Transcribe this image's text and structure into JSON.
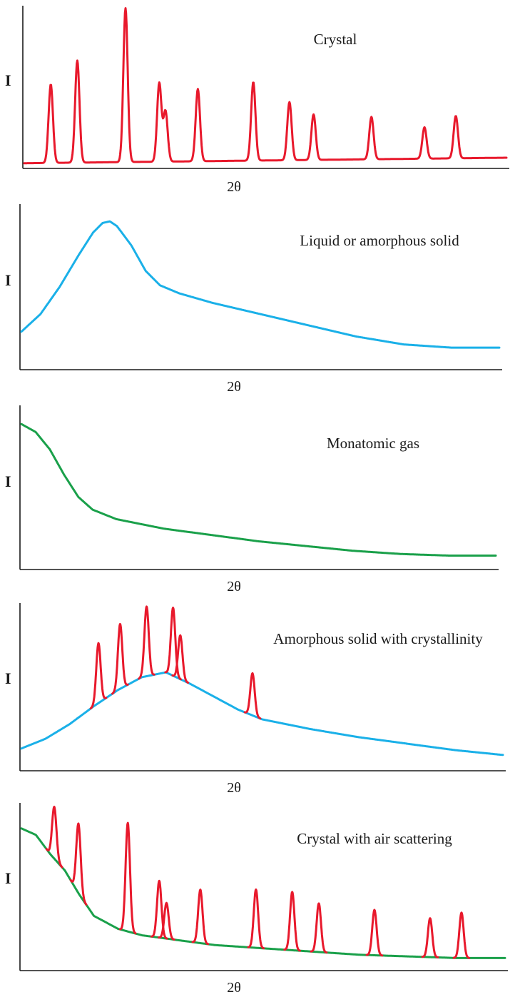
{
  "colors": {
    "crystal": "#e8192c",
    "liquid": "#1ab0e8",
    "gas": "#1aa04a",
    "axis": "#1a1a1a"
  },
  "chart_data": [
    {
      "type": "line",
      "title": "Crystal",
      "xlabel": "2θ",
      "ylabel": "I",
      "grid": false,
      "xlim": [
        0,
        100
      ],
      "ylim": [
        0,
        100
      ],
      "series": [
        {
          "color": "#e8192c",
          "background": [
            [
              0,
              1.5
            ],
            [
              100,
              5
            ]
          ],
          "peaks": [
            [
              5.5,
              50
            ],
            [
              11,
              65
            ],
            [
              21,
              98
            ],
            [
              28,
              50
            ],
            [
              29.3,
              32
            ],
            [
              36,
              46
            ],
            [
              47.5,
              50
            ],
            [
              55,
              37
            ],
            [
              60,
              29
            ],
            [
              72,
              27
            ],
            [
              83,
              20
            ],
            [
              89.5,
              27
            ]
          ]
        }
      ]
    },
    {
      "type": "line",
      "title": "Liquid or amorphous solid",
      "xlabel": "2θ",
      "ylabel": "I",
      "grid": false,
      "xlim": [
        0,
        100
      ],
      "ylim": [
        0,
        100
      ],
      "series": [
        {
          "color": "#1ab0e8",
          "points": [
            [
              0,
              22
            ],
            [
              4,
              33
            ],
            [
              8,
              50
            ],
            [
              12,
              70
            ],
            [
              15,
              84
            ],
            [
              17,
              90
            ],
            [
              18.5,
              91
            ],
            [
              20,
              88
            ],
            [
              23,
              76
            ],
            [
              26,
              60
            ],
            [
              29,
              51
            ],
            [
              33,
              46
            ],
            [
              40,
              40
            ],
            [
              50,
              33
            ],
            [
              60,
              26
            ],
            [
              70,
              19
            ],
            [
              80,
              14
            ],
            [
              90,
              12
            ],
            [
              100,
              12
            ]
          ]
        }
      ]
    },
    {
      "type": "line",
      "title": "Monatomic gas",
      "xlabel": "2θ",
      "ylabel": "I",
      "grid": false,
      "xlim": [
        0,
        100
      ],
      "ylim": [
        0,
        100
      ],
      "series": [
        {
          "color": "#1aa04a",
          "points": [
            [
              0,
              90
            ],
            [
              3,
              85
            ],
            [
              6,
              74
            ],
            [
              9,
              58
            ],
            [
              12,
              44
            ],
            [
              15,
              36
            ],
            [
              20,
              30
            ],
            [
              30,
              24
            ],
            [
              40,
              20
            ],
            [
              50,
              16
            ],
            [
              60,
              13
            ],
            [
              70,
              10
            ],
            [
              80,
              8
            ],
            [
              90,
              7
            ],
            [
              100,
              7
            ]
          ]
        }
      ]
    },
    {
      "type": "line",
      "title": "Amorphous solid with crystallinity",
      "xlabel": "2θ",
      "ylabel": "I",
      "grid": false,
      "xlim": [
        0,
        100
      ],
      "ylim": [
        0,
        100
      ],
      "series": [
        {
          "color": "#1ab0e8",
          "points": [
            [
              0,
              12
            ],
            [
              5,
              18
            ],
            [
              10,
              27
            ],
            [
              15,
              38
            ],
            [
              20,
              48
            ],
            [
              25,
              56
            ],
            [
              30,
              59
            ],
            [
              35,
              52
            ],
            [
              40,
              44
            ],
            [
              45,
              36
            ],
            [
              50,
              30
            ],
            [
              60,
              24
            ],
            [
              70,
              19
            ],
            [
              80,
              15
            ],
            [
              90,
              11
            ],
            [
              100,
              8
            ]
          ]
        },
        {
          "color": "#e8192c",
          "peaks": [
            [
              16,
              37
            ],
            [
              20.5,
              40
            ],
            [
              26,
              43
            ],
            [
              31.5,
              42
            ],
            [
              33,
              27
            ],
            [
              48,
              26
            ]
          ]
        }
      ]
    },
    {
      "type": "line",
      "title": "Crystal with air scattering",
      "xlabel": "2θ",
      "ylabel": "I",
      "grid": false,
      "xlim": [
        0,
        100
      ],
      "ylim": [
        0,
        100
      ],
      "series": [
        {
          "color": "#1aa04a",
          "points": [
            [
              0,
              86
            ],
            [
              3,
              82
            ],
            [
              6,
              70
            ],
            [
              9,
              60
            ],
            [
              12,
              45
            ],
            [
              15,
              32
            ],
            [
              20,
              24
            ],
            [
              25,
              20
            ],
            [
              30,
              18
            ],
            [
              40,
              14
            ],
            [
              50,
              12
            ],
            [
              60,
              10
            ],
            [
              70,
              8
            ],
            [
              80,
              7
            ],
            [
              90,
              6
            ],
            [
              100,
              6
            ]
          ]
        },
        {
          "color": "#e8192c",
          "peaks": [
            [
              6.8,
              32
            ],
            [
              11.8,
              43
            ],
            [
              22,
              67
            ],
            [
              28.5,
              35
            ],
            [
              30,
              22
            ],
            [
              37,
              33
            ],
            [
              48.5,
              36
            ],
            [
              56,
              36
            ],
            [
              61.5,
              30
            ],
            [
              73,
              28
            ],
            [
              84.5,
              24
            ],
            [
              91,
              28
            ]
          ]
        }
      ]
    }
  ]
}
